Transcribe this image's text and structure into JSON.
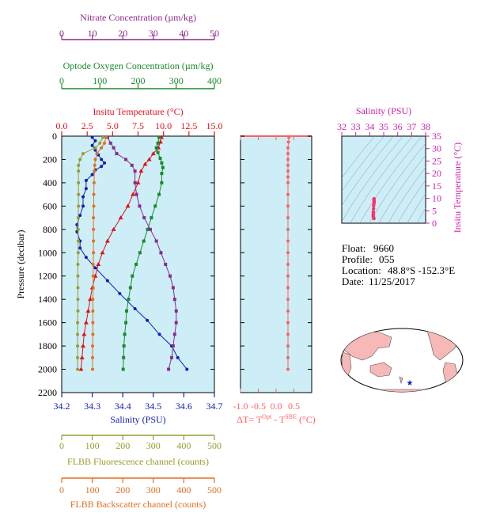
{
  "chart_data": {
    "type": "line",
    "main_profile": {
      "ylabel": "Pressure (decibar)",
      "y_ticks": [
        "0",
        "200",
        "400",
        "600",
        "800",
        "1000",
        "1200",
        "1400",
        "1600",
        "1800",
        "2000",
        "2200"
      ],
      "ylim": [
        0,
        2200
      ],
      "axes": {
        "nitrate": {
          "label": "Nitrate Concentration (µm/kg)",
          "ticks": [
            "0",
            "10",
            "20",
            "30",
            "40",
            "50"
          ],
          "range": [
            0,
            50
          ],
          "color": "#8b2a8b"
        },
        "oxygen": {
          "label": "Optode Oxygen Concentration (µm/kg)",
          "ticks": [
            "0",
            "100",
            "200",
            "300",
            "400"
          ],
          "range": [
            0,
            400
          ],
          "color": "#1a8a2a"
        },
        "temperature": {
          "label": "Insitu Temperature (°C)",
          "ticks": [
            "0.0",
            "2.5",
            "5.0",
            "7.5",
            "10.0",
            "12.5",
            "15.0"
          ],
          "range": [
            0,
            15
          ],
          "color": "#e0101a"
        },
        "salinity": {
          "label": "Salinity (PSU)",
          "ticks": [
            "34.2",
            "34.3",
            "34.4",
            "34.5",
            "34.6",
            "34.7"
          ],
          "range": [
            34.2,
            34.7
          ],
          "color": "#1020b0"
        },
        "fluorescence": {
          "label": "FLBB Fluorescence channel (counts)",
          "ticks": [
            "0",
            "100",
            "200",
            "300",
            "400",
            "500"
          ],
          "range": [
            0,
            500
          ],
          "color": "#9a9a30"
        },
        "backscatter": {
          "label": "FLBB Backscatter channel (counts)",
          "ticks": [
            "0",
            "100",
            "200",
            "300",
            "400",
            "500"
          ],
          "range": [
            0,
            500
          ],
          "color": "#e07020"
        }
      },
      "series": [
        {
          "name": "Salinity",
          "axis": "salinity",
          "marker": "circle",
          "points": [
            [
              34.3,
              10
            ],
            [
              34.31,
              40
            ],
            [
              34.3,
              80
            ],
            [
              34.31,
              120
            ],
            [
              34.32,
              160
            ],
            [
              34.33,
              200
            ],
            [
              34.34,
              230
            ],
            [
              34.33,
              260
            ],
            [
              34.31,
              290
            ],
            [
              34.3,
              330
            ],
            [
              34.28,
              380
            ],
            [
              34.28,
              450
            ],
            [
              34.27,
              520
            ],
            [
              34.27,
              600
            ],
            [
              34.26,
              680
            ],
            [
              34.25,
              760
            ],
            [
              34.25,
              820
            ],
            [
              34.26,
              900
            ],
            [
              34.26,
              960
            ],
            [
              34.28,
              1040
            ],
            [
              34.31,
              1130
            ],
            [
              34.35,
              1240
            ],
            [
              34.39,
              1350
            ],
            [
              34.44,
              1480
            ],
            [
              34.48,
              1580
            ],
            [
              34.52,
              1700
            ],
            [
              34.56,
              1800
            ],
            [
              34.58,
              1900
            ],
            [
              34.61,
              2000
            ]
          ]
        },
        {
          "name": "Temperature",
          "axis": "temperature",
          "marker": "triangle",
          "points": [
            [
              9.8,
              10
            ],
            [
              9.7,
              50
            ],
            [
              9.5,
              100
            ],
            [
              9.0,
              150
            ],
            [
              8.6,
              200
            ],
            [
              8.2,
              240
            ],
            [
              7.8,
              300
            ],
            [
              7.5,
              400
            ],
            [
              7.0,
              500
            ],
            [
              6.5,
              600
            ],
            [
              5.8,
              700
            ],
            [
              5.1,
              800
            ],
            [
              4.5,
              900
            ],
            [
              4.0,
              1000
            ],
            [
              3.6,
              1100
            ],
            [
              3.3,
              1200
            ],
            [
              3.0,
              1300
            ],
            [
              2.8,
              1400
            ],
            [
              2.6,
              1500
            ],
            [
              2.4,
              1600
            ],
            [
              2.2,
              1700
            ],
            [
              2.1,
              1800
            ],
            [
              2.0,
              1900
            ],
            [
              1.9,
              2000
            ]
          ]
        },
        {
          "name": "Oxygen",
          "axis": "oxygen",
          "marker": "square",
          "points": [
            [
              255,
              10
            ],
            [
              252,
              60
            ],
            [
              248,
              100
            ],
            [
              252,
              140
            ],
            [
              258,
              190
            ],
            [
              262,
              230
            ],
            [
              265,
              270
            ],
            [
              262,
              320
            ],
            [
              262,
              400
            ],
            [
              255,
              500
            ],
            [
              245,
              600
            ],
            [
              235,
              700
            ],
            [
              225,
              800
            ],
            [
              215,
              900
            ],
            [
              205,
              1000
            ],
            [
              195,
              1100
            ],
            [
              185,
              1200
            ],
            [
              180,
              1300
            ],
            [
              175,
              1400
            ],
            [
              170,
              1500
            ],
            [
              168,
              1600
            ],
            [
              165,
              1700
            ],
            [
              163,
              1800
            ],
            [
              162,
              1900
            ],
            [
              161,
              2000
            ]
          ]
        },
        {
          "name": "Nitrate",
          "axis": "nitrate",
          "marker": "square",
          "points": [
            [
              15,
              10
            ],
            [
              16,
              60
            ],
            [
              17,
              100
            ],
            [
              18,
              150
            ],
            [
              21,
              200
            ],
            [
              23,
              250
            ],
            [
              24,
              300
            ],
            [
              24,
              400
            ],
            [
              24.5,
              500
            ],
            [
              25.5,
              600
            ],
            [
              27,
              700
            ],
            [
              29,
              800
            ],
            [
              31,
              900
            ],
            [
              32.5,
              1000
            ],
            [
              34,
              1100
            ],
            [
              35.5,
              1200
            ],
            [
              36.5,
              1300
            ],
            [
              37,
              1400
            ],
            [
              37.5,
              1500
            ],
            [
              37.5,
              1600
            ],
            [
              37,
              1700
            ],
            [
              36.5,
              1800
            ],
            [
              36,
              1900
            ],
            [
              35,
              2000
            ]
          ]
        },
        {
          "name": "Fluorescence",
          "axis": "fluorescence",
          "marker": "circle",
          "points": [
            [
              135,
              10
            ],
            [
              125,
              60
            ],
            [
              110,
              100
            ],
            [
              70,
              150
            ],
            [
              60,
              200
            ],
            [
              55,
              250
            ],
            [
              55,
              300
            ],
            [
              55,
              400
            ],
            [
              55,
              500
            ],
            [
              55,
              600
            ],
            [
              54,
              700
            ],
            [
              54,
              800
            ],
            [
              54,
              900
            ],
            [
              54,
              1000
            ],
            [
              53,
              1100
            ],
            [
              53,
              1200
            ],
            [
              53,
              1300
            ],
            [
              53,
              1400
            ],
            [
              53,
              1500
            ],
            [
              52,
              1600
            ],
            [
              52,
              1700
            ],
            [
              52,
              1800
            ],
            [
              52,
              1900
            ],
            [
              52,
              2000
            ]
          ]
        },
        {
          "name": "Backscatter",
          "axis": "backscatter",
          "marker": "circle",
          "points": [
            [
              145,
              10
            ],
            [
              140,
              60
            ],
            [
              130,
              100
            ],
            [
              115,
              150
            ],
            [
              110,
              200
            ],
            [
              108,
              250
            ],
            [
              107,
              300
            ],
            [
              106,
              400
            ],
            [
              105,
              500
            ],
            [
              105,
              600
            ],
            [
              104,
              700
            ],
            [
              104,
              800
            ],
            [
              104,
              900
            ],
            [
              104,
              1000
            ],
            [
              103,
              1100
            ],
            [
              103,
              1200
            ],
            [
              103,
              1300
            ],
            [
              102,
              1400
            ],
            [
              102,
              1500
            ],
            [
              102,
              1600
            ],
            [
              102,
              1700
            ],
            [
              101,
              1800
            ],
            [
              101,
              1900
            ],
            [
              101,
              2000
            ]
          ]
        }
      ]
    },
    "delta_t": {
      "xlabel_parts": [
        "ΔT= T",
        "Opt",
        " - T",
        "SBE",
        " (°C)"
      ],
      "x_ticks": [
        "-1.0",
        "-0.5",
        "0.0",
        "0.5"
      ],
      "xlim": [
        -1.0,
        0.5
      ],
      "color": "#ff6060",
      "points": [
        [
          0.02,
          10
        ],
        [
          0.01,
          50
        ],
        [
          0.0,
          100
        ],
        [
          0.0,
          150
        ],
        [
          0.0,
          200
        ],
        [
          0.0,
          250
        ],
        [
          0.0,
          300
        ],
        [
          0.0,
          350
        ],
        [
          0.0,
          400
        ],
        [
          0.0,
          500
        ],
        [
          0.0,
          600
        ],
        [
          0.0,
          700
        ],
        [
          0.0,
          800
        ],
        [
          0.0,
          900
        ],
        [
          0.0,
          1000
        ],
        [
          0.0,
          1100
        ],
        [
          0.0,
          1200
        ],
        [
          0.0,
          1300
        ],
        [
          0.0,
          1400
        ],
        [
          0.0,
          1500
        ],
        [
          0.0,
          1600
        ],
        [
          0.0,
          1700
        ],
        [
          0.0,
          1800
        ],
        [
          0.0,
          1900
        ],
        [
          0.0,
          2000
        ]
      ]
    },
    "ts_diagram": {
      "type": "scatter",
      "xlabel": "Salinity (PSU)",
      "ylabel": "Insitu Temperature (°C)",
      "x_ticks": [
        "32",
        "33",
        "34",
        "35",
        "36",
        "37",
        "38"
      ],
      "y_ticks": [
        "0",
        "5",
        "10",
        "15",
        "20",
        "25",
        "30",
        "35"
      ],
      "xlim": [
        32,
        38
      ],
      "ylim": [
        0,
        35
      ],
      "color": "#ff3070",
      "points": [
        [
          34.3,
          1.9
        ],
        [
          34.28,
          2.2
        ],
        [
          34.26,
          2.6
        ],
        [
          34.25,
          3.0
        ],
        [
          34.25,
          3.6
        ],
        [
          34.26,
          4.5
        ],
        [
          34.27,
          5.8
        ],
        [
          34.28,
          7.0
        ],
        [
          34.3,
          7.8
        ],
        [
          34.32,
          8.6
        ],
        [
          34.31,
          9.0
        ],
        [
          34.3,
          9.5
        ],
        [
          34.31,
          9.8
        ]
      ]
    },
    "info": {
      "float_label": "Float:",
      "float_value": "9660",
      "profile_label": "Profile:",
      "profile_value": "055",
      "location_label": "Location:",
      "location_value": "48.8°S  -152.3°E",
      "date_label": "Date:",
      "date_value": "11/25/2017"
    }
  }
}
